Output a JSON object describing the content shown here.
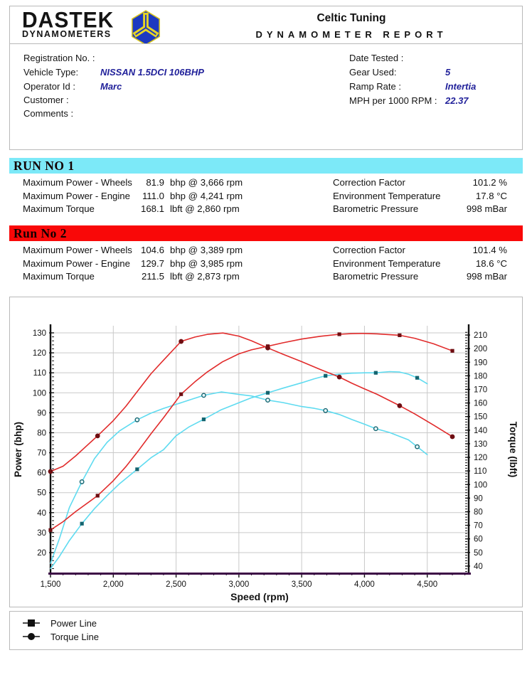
{
  "header": {
    "logo_line1": "DASTEK",
    "logo_line2": "DYNAMOMETERS",
    "title": "Celtic Tuning",
    "subtitle": "DYNAMOMETER REPORT"
  },
  "info": {
    "left": [
      {
        "label": "Registration No. :",
        "value": ""
      },
      {
        "label": "Vehicle Type:",
        "value": "NISSAN 1.5DCI 106BHP"
      },
      {
        "label": "Operator Id :",
        "value": "Marc"
      },
      {
        "label": "Customer :",
        "value": ""
      },
      {
        "label": "Comments :",
        "value": ""
      }
    ],
    "right": [
      {
        "label": "Date Tested :",
        "value": ""
      },
      {
        "label": "Gear Used:",
        "value": "5"
      },
      {
        "label": "Ramp Rate :",
        "value": "Intertia"
      },
      {
        "label": "MPH per 1000 RPM :",
        "value": "22.37"
      }
    ]
  },
  "runs": [
    {
      "title": "RUN NO 1",
      "banner_color": "#7ce9f8",
      "stats_left": [
        {
          "label": "Maximum Power - Wheels",
          "value": "81.9",
          "unit": "bhp @ 3,666 rpm"
        },
        {
          "label": "Maximum Power - Engine",
          "value": "111.0",
          "unit": "bhp @ 4,241 rpm"
        },
        {
          "label": "Maximum Torque",
          "value": "168.1",
          "unit": " lbft @ 2,860 rpm"
        }
      ],
      "stats_right": [
        {
          "label": "Correction Factor",
          "value": "101.2 %"
        },
        {
          "label": "Environment Temperature",
          "value": "17.8 °C"
        },
        {
          "label": "Barometric Pressure",
          "value": "998 mBar"
        }
      ]
    },
    {
      "title": "Run No 2",
      "banner_color": "#f90808",
      "stats_left": [
        {
          "label": "Maximum Power - Wheels",
          "value": "104.6",
          "unit": "bhp @ 3,389 rpm"
        },
        {
          "label": "Maximum Power - Engine",
          "value": "129.7",
          "unit": "bhp @ 3,985 rpm"
        },
        {
          "label": "Maximum Torque",
          "value": "211.5",
          "unit": " lbft @ 2,873 rpm"
        }
      ],
      "stats_right": [
        {
          "label": "Correction Factor",
          "value": "101.4 %"
        },
        {
          "label": "Environment Temperature",
          "value": "18.6 °C"
        },
        {
          "label": "Barometric Pressure",
          "value": "998 mBar"
        }
      ]
    }
  ],
  "chart_data": {
    "type": "line",
    "xlabel": "Speed (rpm)",
    "ylabel_left": "Power (bhp)",
    "ylabel_right": "Torque (lbft)",
    "xlim": [
      1500,
      4830
    ],
    "ylim_left": [
      10,
      130
    ],
    "ylim_right": [
      34,
      212
    ],
    "grid": true,
    "x_ticks": [
      {
        "v": 1500,
        "label": "1,500"
      },
      {
        "v": 2000,
        "label": "2,000"
      },
      {
        "v": 2500,
        "label": "2,500"
      },
      {
        "v": 3000,
        "label": "3,000"
      },
      {
        "v": 3500,
        "label": "3,500"
      },
      {
        "v": 4000,
        "label": "4,000"
      },
      {
        "v": 4500,
        "label": "4,500"
      }
    ],
    "y_left_ticks": [
      20,
      30,
      40,
      50,
      60,
      70,
      80,
      90,
      100,
      110,
      120,
      130
    ],
    "y_right_ticks": [
      40,
      50,
      60,
      70,
      80,
      90,
      100,
      110,
      120,
      130,
      140,
      150,
      160,
      170,
      180,
      190,
      200,
      210
    ],
    "colors": {
      "run1": "#5fdbf0",
      "run2": "#e12b2b",
      "run1_marker": "#14646f",
      "run2_marker": "#6e0e12",
      "grid": "#c9c9c9",
      "axis": "#111111",
      "x_axis": "#3c0a46"
    },
    "series": [
      {
        "name": "Run 1 Power Line",
        "axis": "left",
        "color": "#5fdbf0",
        "marker": "square",
        "marker_color": "#14646f",
        "points": [
          [
            1500,
            12
          ],
          [
            1570,
            18
          ],
          [
            1650,
            26
          ],
          [
            1750,
            34.5
          ],
          [
            1850,
            42
          ],
          [
            1950,
            48.5
          ],
          [
            2050,
            54.5
          ],
          [
            2190,
            61.7
          ],
          [
            2300,
            67.5
          ],
          [
            2400,
            71.5
          ],
          [
            2500,
            78.5
          ],
          [
            2600,
            82.8
          ],
          [
            2720,
            86.7
          ],
          [
            2860,
            91.5
          ],
          [
            3000,
            95
          ],
          [
            3100,
            97.5
          ],
          [
            3230,
            100
          ],
          [
            3350,
            102.3
          ],
          [
            3500,
            105
          ],
          [
            3600,
            107
          ],
          [
            3690,
            108.5
          ],
          [
            3800,
            109.3
          ],
          [
            3900,
            109.8
          ],
          [
            4000,
            110
          ],
          [
            4090,
            110
          ],
          [
            4200,
            110.6
          ],
          [
            4280,
            110.4
          ],
          [
            4350,
            109.3
          ],
          [
            4420,
            107.5
          ],
          [
            4500,
            104.5
          ]
        ],
        "marker_points": [
          [
            1750,
            34.5
          ],
          [
            2190,
            61.7
          ],
          [
            2720,
            86.7
          ],
          [
            3230,
            100
          ],
          [
            3690,
            108.5
          ],
          [
            4090,
            110
          ],
          [
            4420,
            107.5
          ]
        ]
      },
      {
        "name": "Run 1 Torque Line",
        "axis": "right",
        "color": "#5fdbf0",
        "marker": "circle",
        "marker_color": "#14646f",
        "points": [
          [
            1500,
            42
          ],
          [
            1570,
            60
          ],
          [
            1650,
            83
          ],
          [
            1750,
            102
          ],
          [
            1850,
            119
          ],
          [
            1950,
            131
          ],
          [
            2050,
            139.5
          ],
          [
            2190,
            147.6
          ],
          [
            2300,
            152.5
          ],
          [
            2400,
            156
          ],
          [
            2500,
            159
          ],
          [
            2600,
            162
          ],
          [
            2720,
            165.6
          ],
          [
            2860,
            168.1
          ],
          [
            3000,
            166.3
          ],
          [
            3100,
            165.2
          ],
          [
            3230,
            162.1
          ],
          [
            3350,
            160.3
          ],
          [
            3500,
            157.4
          ],
          [
            3600,
            156.1
          ],
          [
            3690,
            154.4
          ],
          [
            3800,
            151.5
          ],
          [
            3900,
            147.8
          ],
          [
            4000,
            144.4
          ],
          [
            4090,
            141.1
          ],
          [
            4200,
            138.3
          ],
          [
            4280,
            135.4
          ],
          [
            4350,
            132.9
          ],
          [
            4420,
            127.8
          ],
          [
            4500,
            122
          ]
        ],
        "marker_points": [
          [
            1750,
            102
          ],
          [
            2190,
            147.6
          ],
          [
            2720,
            165.6
          ],
          [
            3230,
            162.1
          ],
          [
            3690,
            154.4
          ],
          [
            4090,
            141.1
          ],
          [
            4420,
            127.8
          ]
        ]
      },
      {
        "name": "Run 2 Power Line",
        "axis": "left",
        "color": "#e12b2b",
        "marker": "square",
        "marker_color": "#6e0e12",
        "points": [
          [
            1500,
            31.3
          ],
          [
            1600,
            35.5
          ],
          [
            1700,
            40.5
          ],
          [
            1875,
            48.5
          ],
          [
            2000,
            56
          ],
          [
            2100,
            63
          ],
          [
            2200,
            71
          ],
          [
            2300,
            79.5
          ],
          [
            2400,
            87.5
          ],
          [
            2540,
            99.3
          ],
          [
            2650,
            105.5
          ],
          [
            2750,
            110.5
          ],
          [
            2870,
            115.5
          ],
          [
            3000,
            119.5
          ],
          [
            3100,
            121.5
          ],
          [
            3230,
            123.3
          ],
          [
            3350,
            125
          ],
          [
            3500,
            126.9
          ],
          [
            3650,
            128.3
          ],
          [
            3800,
            129.3
          ],
          [
            3900,
            129.6
          ],
          [
            3985,
            129.7
          ],
          [
            4100,
            129.5
          ],
          [
            4280,
            128.8
          ],
          [
            4400,
            127.3
          ],
          [
            4550,
            124.5
          ],
          [
            4700,
            121
          ]
        ],
        "marker_points": [
          [
            1500,
            31.3
          ],
          [
            1875,
            48.5
          ],
          [
            2540,
            99.3
          ],
          [
            3230,
            123.3
          ],
          [
            3800,
            129.3
          ],
          [
            4280,
            128.8
          ],
          [
            4700,
            121
          ]
        ]
      },
      {
        "name": "Run 2 Torque Line",
        "axis": "right",
        "color": "#e12b2b",
        "marker": "circle",
        "marker_color": "#6e0e12",
        "points": [
          [
            1500,
            109.6
          ],
          [
            1600,
            113.5
          ],
          [
            1700,
            121
          ],
          [
            1875,
            135.8
          ],
          [
            2000,
            147
          ],
          [
            2100,
            157.5
          ],
          [
            2200,
            169.5
          ],
          [
            2300,
            181.5
          ],
          [
            2400,
            191.5
          ],
          [
            2540,
            205.3
          ],
          [
            2650,
            208.5
          ],
          [
            2750,
            210.5
          ],
          [
            2873,
            211.5
          ],
          [
            3000,
            209.2
          ],
          [
            3100,
            205.8
          ],
          [
            3230,
            200.5
          ],
          [
            3350,
            195.9
          ],
          [
            3500,
            190.4
          ],
          [
            3650,
            184.6
          ],
          [
            3800,
            179.1
          ],
          [
            3900,
            174.5
          ],
          [
            3985,
            171
          ],
          [
            4100,
            166.4
          ],
          [
            4280,
            158
          ],
          [
            4400,
            152
          ],
          [
            4550,
            143.7
          ],
          [
            4700,
            135.2
          ]
        ],
        "marker_points": [
          [
            1500,
            109.6
          ],
          [
            1875,
            135.8
          ],
          [
            2540,
            205.3
          ],
          [
            3230,
            200.5
          ],
          [
            3800,
            179.1
          ],
          [
            4280,
            158
          ],
          [
            4700,
            135.2
          ]
        ]
      }
    ]
  },
  "legend": {
    "items": [
      {
        "label": "Power Line",
        "marker": "square"
      },
      {
        "label": "Torque Line",
        "marker": "circle"
      }
    ]
  }
}
